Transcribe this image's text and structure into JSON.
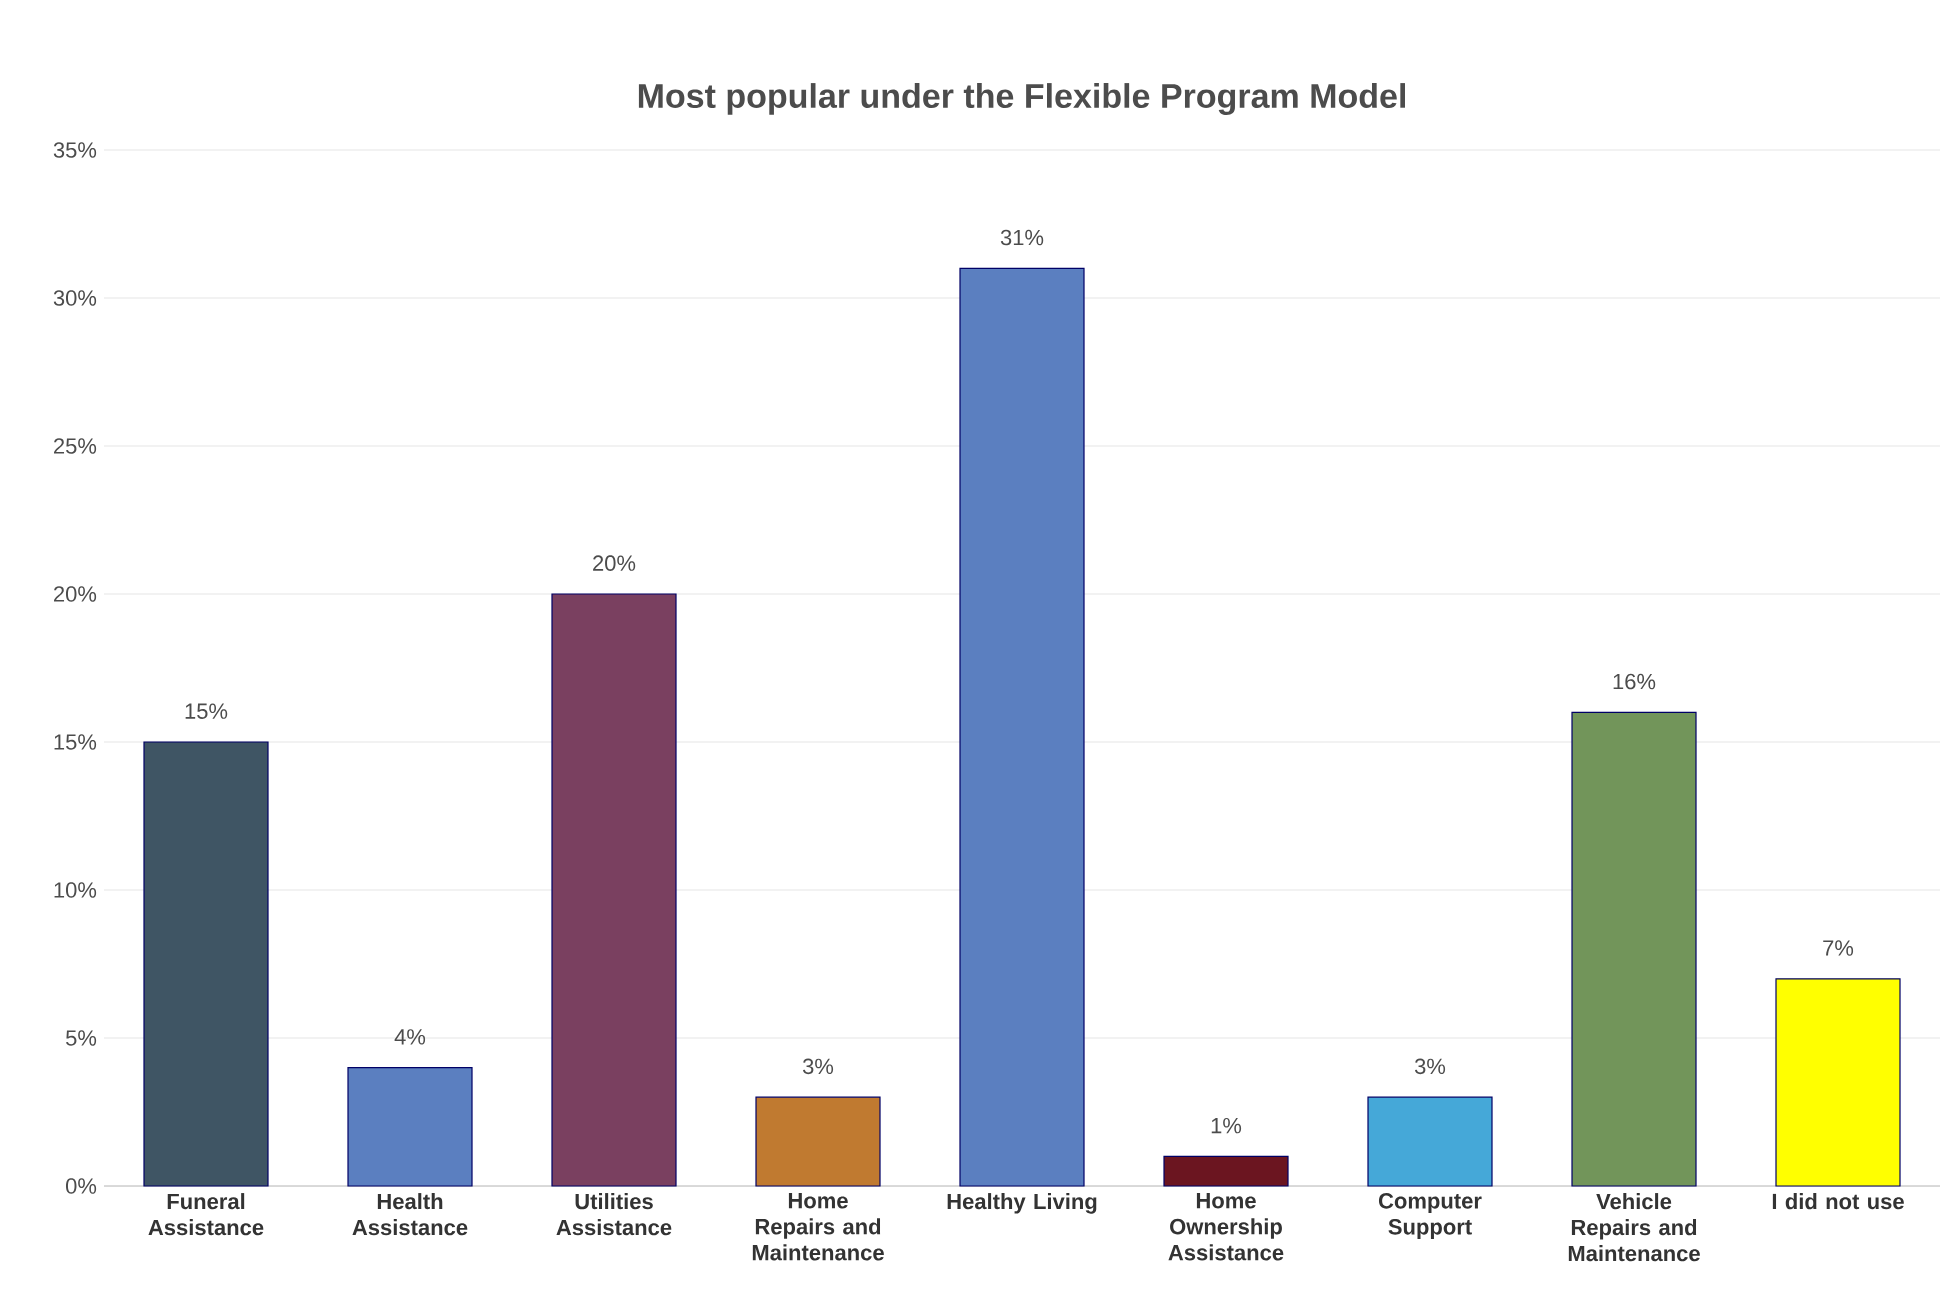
{
  "chart_data": {
    "type": "bar",
    "title": "Most popular under the Flexible Program Model",
    "categories": [
      "Funeral Assistance",
      "Health Assistance",
      "Utilities Assistance",
      "Home Repairs and Maintenance",
      "Healthy Living",
      "Home Ownership Assistance",
      "Computer Support",
      "Vehicle Repairs and Maintenance",
      "I did not use"
    ],
    "values": [
      15,
      4,
      20,
      3,
      31,
      1,
      3,
      16,
      7
    ],
    "value_labels": [
      "15%",
      "4%",
      "20%",
      "3%",
      "31%",
      "1%",
      "3%",
      "16%",
      "7%"
    ],
    "colors": [
      "#3f5564",
      "#5b7fc0",
      "#7a4060",
      "#c07a30",
      "#5b7fc0",
      "#6b1520",
      "#45a8d8",
      "#72955a",
      "#ffff00"
    ],
    "ylim": [
      0,
      35
    ],
    "yticks": [
      {
        "value": 0,
        "label": "0%"
      },
      {
        "value": 5,
        "label": "5%"
      },
      {
        "value": 10,
        "label": "10%"
      },
      {
        "value": 15,
        "label": "15%"
      },
      {
        "value": 20,
        "label": "20%"
      },
      {
        "value": 25,
        "label": "25%"
      },
      {
        "value": 30,
        "label": "30%"
      },
      {
        "value": 35,
        "label": "35%"
      }
    ],
    "grid": "y"
  }
}
